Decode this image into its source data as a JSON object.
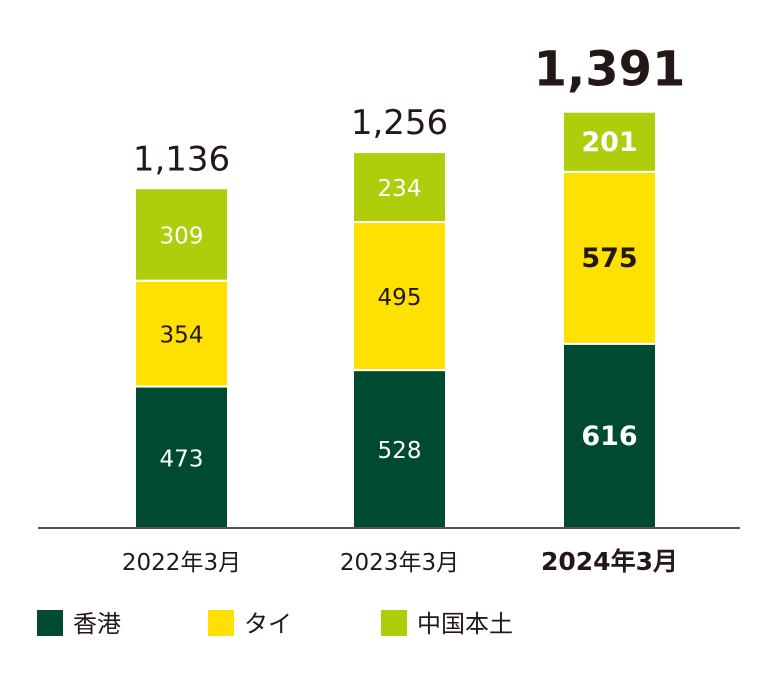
{
  "chart_data": {
    "type": "bar",
    "stacked": true,
    "categories": [
      "2022年3月",
      "2023年3月",
      "2024年3月"
    ],
    "highlight_category": "2024年3月",
    "series": [
      {
        "name": "香港",
        "values": [
          473,
          528,
          616
        ],
        "color": "#004A32"
      },
      {
        "name": "タイ",
        "values": [
          354,
          495,
          575
        ],
        "color": "#FFE100"
      },
      {
        "name": "中国本土",
        "values": [
          309,
          234,
          201
        ],
        "color": "#AECD0A"
      }
    ],
    "totals": [
      "1,136",
      "1,256",
      "1,391"
    ],
    "ylim": [
      0,
      1391
    ],
    "grid": false,
    "legend_placement": "bottom-left",
    "title": "",
    "xlabel": "",
    "ylabel": ""
  }
}
